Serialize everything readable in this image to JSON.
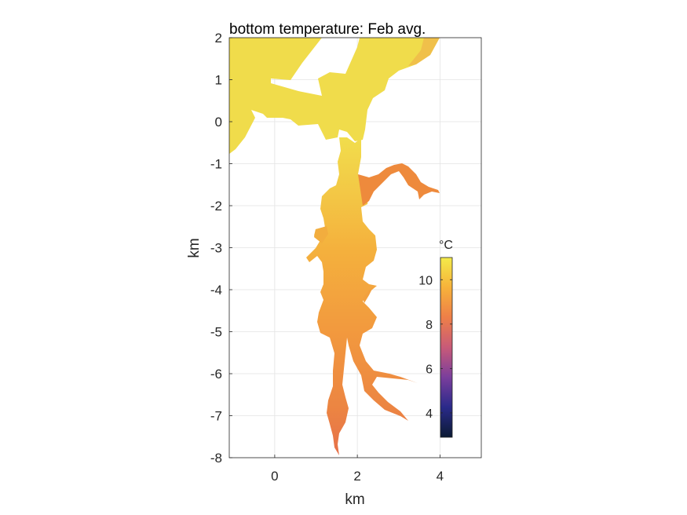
{
  "chart_data": {
    "type": "heatmap",
    "title": "bottom temperature: Feb avg.",
    "xlabel": "km",
    "ylabel": "km",
    "xlim": [
      -1.1,
      5.0
    ],
    "ylim": [
      -8,
      2
    ],
    "xticks": [
      0,
      2,
      4
    ],
    "yticks": [
      2,
      1,
      0,
      -1,
      -2,
      -3,
      -4,
      -5,
      -6,
      -7,
      -8
    ],
    "grid": true,
    "colorbar": {
      "label": "°C",
      "range": [
        2.9,
        11.0
      ],
      "ticks": [
        4,
        6,
        8,
        10
      ],
      "colormap": "thermal",
      "stops": [
        "#0b1a33",
        "#2a2a8a",
        "#7a3e9c",
        "#c85a78",
        "#ee7f48",
        "#f7b23a",
        "#f3eb4a"
      ]
    },
    "field_colors": {
      "open_water": "#f0d24a",
      "upper_channel": "#f4b83c",
      "mid_channel": "#f4a03c",
      "lower_channel": "#ee8a40",
      "upper_reaches": "#e86e48"
    }
  }
}
